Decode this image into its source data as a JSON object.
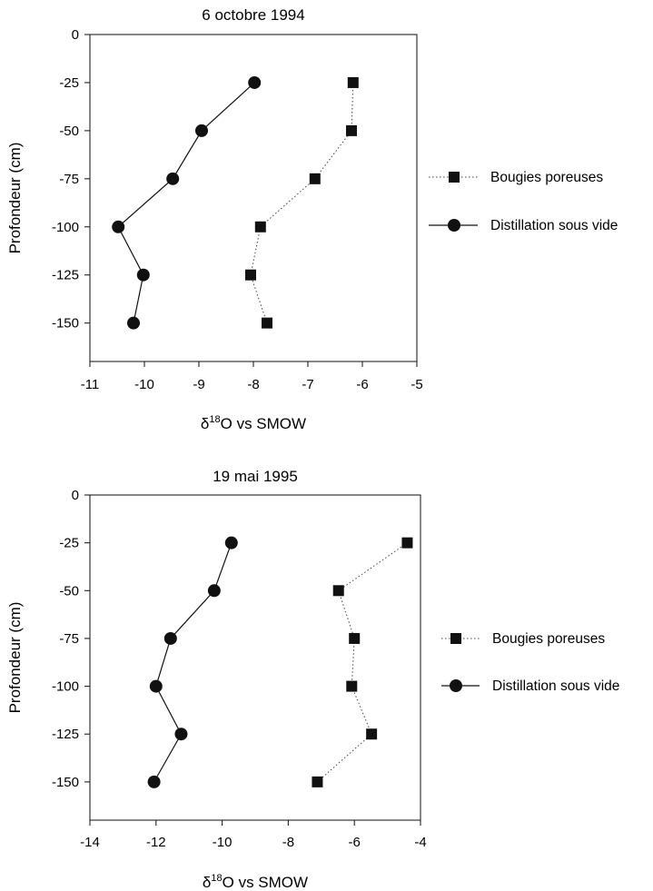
{
  "chart_data": [
    {
      "type": "line",
      "title": "6 octobre 1994",
      "xlabel_base": "δ",
      "xlabel_sup": "18",
      "xlabel_rest": "O vs SMOW",
      "ylabel": "Profondeur (cm)",
      "xlim": [
        -11,
        -5
      ],
      "ylim": [
        -170,
        0
      ],
      "xticks": [
        "-11",
        "-10",
        "-9",
        "-8",
        "-7",
        "-6",
        "-5"
      ],
      "yticks": [
        "0",
        "-25",
        "-50",
        "-75",
        "-100",
        "-125",
        "-150"
      ],
      "grid": false,
      "legend_position": "right",
      "series": [
        {
          "name": "Bougies poreuses",
          "marker": "square",
          "line": "dotted",
          "x": [
            -6.17,
            -6.2,
            -6.87,
            -7.87,
            -8.05,
            -7.75
          ],
          "y": [
            -25,
            -50,
            -75,
            -100,
            -125,
            -150
          ]
        },
        {
          "name": "Distillation sous vide",
          "marker": "circle",
          "line": "solid",
          "x": [
            -7.98,
            -8.95,
            -9.48,
            -10.48,
            -10.02,
            -10.2
          ],
          "y": [
            -25,
            -50,
            -75,
            -100,
            -125,
            -150
          ]
        }
      ]
    },
    {
      "type": "line",
      "title": "19 mai 1995",
      "xlabel_base": "δ",
      "xlabel_sup": "18",
      "xlabel_rest": "O vs SMOW",
      "ylabel": "Profondeur (cm)",
      "xlim": [
        -14,
        -4
      ],
      "ylim": [
        -170,
        0
      ],
      "xticks": [
        "-14",
        "-12",
        "-10",
        "-8",
        "-6",
        "-4"
      ],
      "yticks": [
        "0",
        "-25",
        "-50",
        "-75",
        "-100",
        "-125",
        "-150"
      ],
      "grid": false,
      "legend_position": "right",
      "series": [
        {
          "name": "Bougies poreuses",
          "marker": "square",
          "line": "dotted",
          "x": [
            -4.4,
            -6.48,
            -6.0,
            -6.08,
            -5.48,
            -7.12
          ],
          "y": [
            -25,
            -50,
            -75,
            -100,
            -125,
            -150
          ]
        },
        {
          "name": "Distillation sous vide",
          "marker": "circle",
          "line": "solid",
          "x": [
            -9.72,
            -10.24,
            -11.56,
            -12.0,
            -11.24,
            -12.06
          ],
          "y": [
            -25,
            -50,
            -75,
            -100,
            -125,
            -150
          ]
        }
      ]
    }
  ]
}
